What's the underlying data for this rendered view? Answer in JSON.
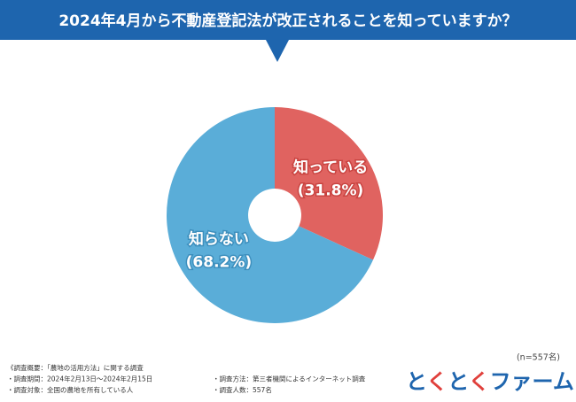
{
  "chart_data": {
    "type": "donut",
    "title": "2024年4月から不動産登記法が改正されることを知っていますか？",
    "categories": [
      "知っている",
      "知らない"
    ],
    "values": [
      31.8,
      68.2
    ],
    "value_labels": [
      "(31.8%)",
      "(68.2%)"
    ],
    "colors": [
      "#e06360",
      "#5aadd8"
    ],
    "label_strokes": [
      "#c94441",
      "#3d8fbd"
    ],
    "sample_note": "(n=557名)"
  },
  "notes": {
    "left": [
      "《調査概要：「農地の活用方法」に関する調査",
      "・調査期間：2024年2月13日～2024年2月15日",
      "・調査対象：全国の農地を所有している人"
    ],
    "right": [
      "・調査方法：第三者機関によるインターネット調査",
      "・調査人数：557名"
    ]
  },
  "logo": [
    "と",
    "く",
    "と",
    "く",
    "ファーム"
  ]
}
